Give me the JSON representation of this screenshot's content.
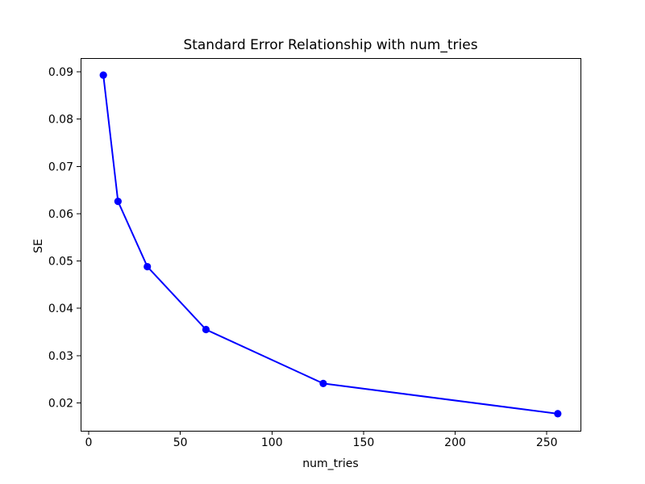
{
  "figure": {
    "background": "#ffffff",
    "text_color": "#000000",
    "spine_color": "#000000"
  },
  "chart_data": {
    "type": "line",
    "title": "Standard Error Relationship with num_tries",
    "xlabel": "num_tries",
    "ylabel": "SE",
    "x": [
      8,
      16,
      32,
      64,
      128,
      256
    ],
    "y": [
      0.0893,
      0.0626,
      0.0488,
      0.0355,
      0.0241,
      0.0177
    ],
    "line_color": "#0000ff",
    "marker": "circle",
    "marker_color": "#0000ff",
    "xlim": [
      -4.4,
      268.4
    ],
    "ylim": [
      0.0141,
      0.0929
    ],
    "xticks": [
      0,
      50,
      100,
      150,
      200,
      250
    ],
    "xtick_labels": [
      "0",
      "50",
      "100",
      "150",
      "200",
      "250"
    ],
    "yticks": [
      0.02,
      0.03,
      0.04,
      0.05,
      0.06,
      0.07,
      0.08,
      0.09
    ],
    "ytick_labels": [
      "0.02",
      "0.03",
      "0.04",
      "0.05",
      "0.06",
      "0.07",
      "0.08",
      "0.09"
    ],
    "grid": false,
    "legend": "none"
  }
}
